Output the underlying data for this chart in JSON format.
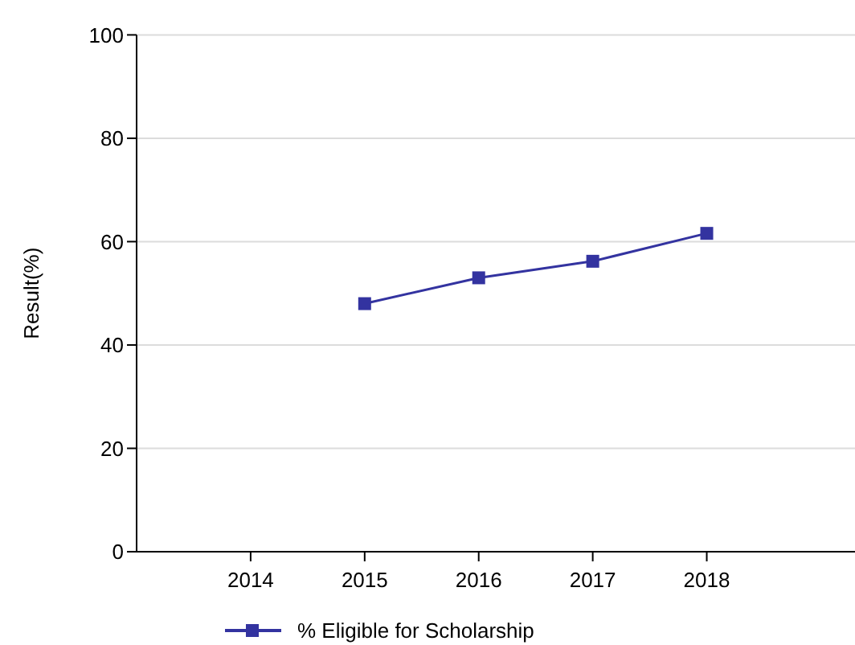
{
  "chart_data": {
    "type": "line",
    "ylabel": "Result(%)",
    "x": [
      2015,
      2016,
      2017,
      2018
    ],
    "xlim": [
      2013,
      2019.3
    ],
    "xticks": [
      2014,
      2015,
      2016,
      2017,
      2018
    ],
    "ylim": [
      0,
      100
    ],
    "yticks": [
      0,
      20,
      40,
      60,
      80,
      100
    ],
    "grid": "y",
    "legend": "bottom",
    "marker": "square",
    "line_style": "solid",
    "series": [
      {
        "name": "% Eligible for Scholarship",
        "color": "#3333a0",
        "values": [
          48,
          53,
          56.2,
          61.6
        ]
      }
    ]
  }
}
